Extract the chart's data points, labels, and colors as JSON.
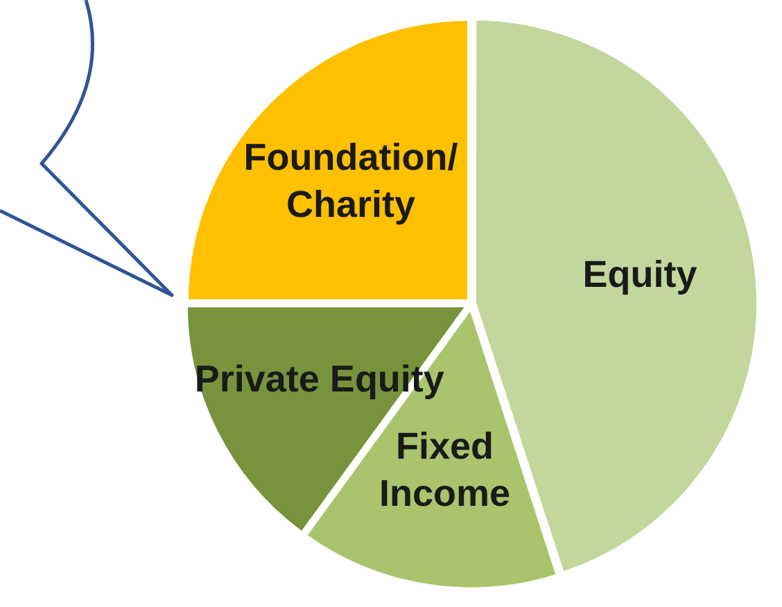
{
  "chart_data": {
    "type": "pie",
    "categories": [
      "Equity",
      "Fixed\nIncome",
      "Private Equity",
      "Foundation/\nCharity"
    ],
    "values": [
      45,
      15,
      15,
      25
    ],
    "colors": [
      "#c3d69b",
      "#a9c46c",
      "#77933c",
      "#ffc000"
    ],
    "legend": false
  }
}
